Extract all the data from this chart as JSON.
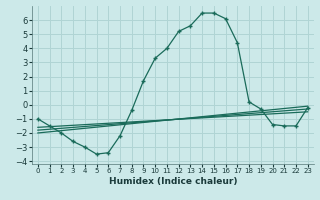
{
  "xlabel": "Humidex (Indice chaleur)",
  "background_color": "#cce9e9",
  "grid_color": "#b0d4d4",
  "line_color": "#1a6b5a",
  "xlim": [
    -0.5,
    23.5
  ],
  "ylim": [
    -4.2,
    7.0
  ],
  "xticks": [
    0,
    1,
    2,
    3,
    4,
    5,
    6,
    7,
    8,
    9,
    10,
    11,
    12,
    13,
    14,
    15,
    16,
    17,
    18,
    19,
    20,
    21,
    22,
    23
  ],
  "yticks": [
    -4,
    -3,
    -2,
    -1,
    0,
    1,
    2,
    3,
    4,
    5,
    6
  ],
  "main_x": [
    0,
    1,
    2,
    3,
    4,
    5,
    6,
    7,
    8,
    9,
    10,
    11,
    12,
    13,
    14,
    15,
    16,
    17,
    18,
    19,
    20,
    21,
    22,
    23
  ],
  "main_y": [
    -1.0,
    -1.5,
    -2.0,
    -2.6,
    -3.0,
    -3.5,
    -3.4,
    -2.2,
    -0.4,
    1.7,
    3.3,
    4.0,
    5.2,
    5.6,
    6.5,
    6.5,
    6.1,
    4.4,
    0.2,
    -0.3,
    -1.4,
    -1.5,
    -1.5,
    -0.2
  ],
  "line1_x": [
    0,
    23
  ],
  "line1_y": [
    -1.6,
    -0.5
  ],
  "line2_x": [
    0,
    23
  ],
  "line2_y": [
    -1.8,
    -0.3
  ],
  "line3_x": [
    0,
    23
  ],
  "line3_y": [
    -2.0,
    -0.1
  ]
}
